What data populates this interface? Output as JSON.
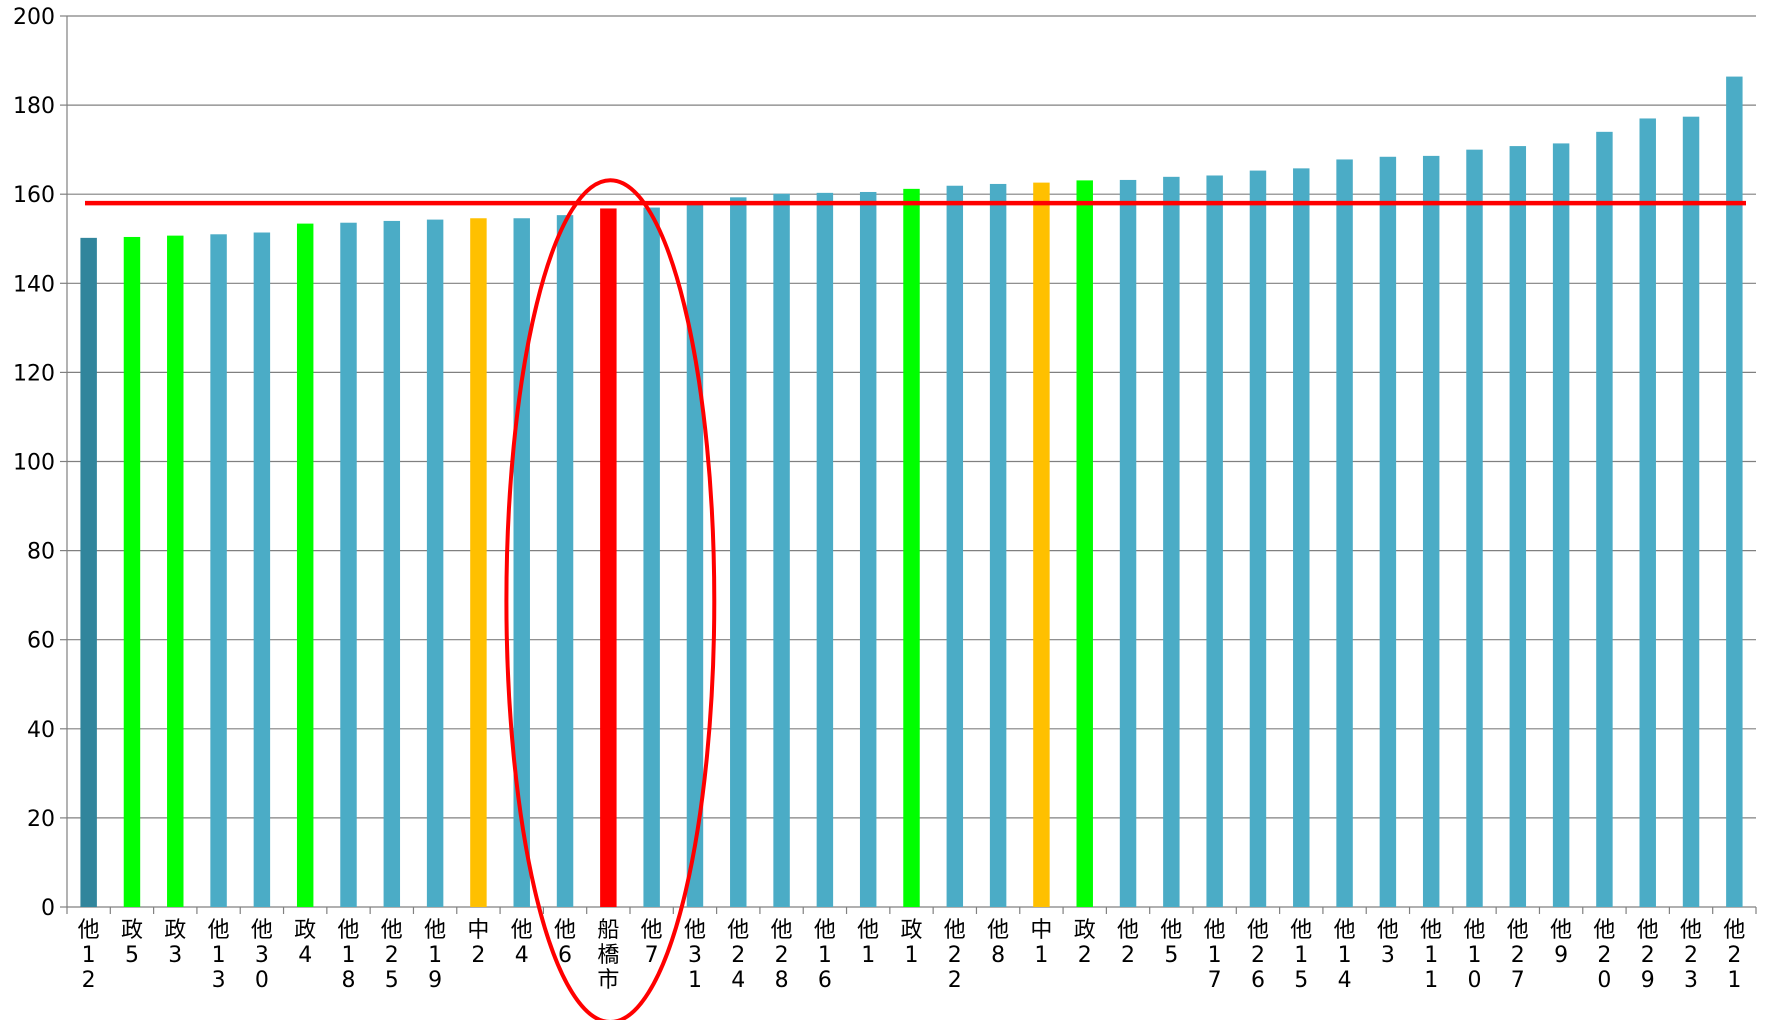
{
  "chart_data": {
    "type": "bar",
    "title": "",
    "xlabel": "",
    "ylabel": "",
    "ylim": [
      0,
      200
    ],
    "y_ticks": [
      0,
      20,
      40,
      60,
      80,
      100,
      120,
      140,
      160,
      180,
      200
    ],
    "grid": "horizontal",
    "legend": "none",
    "categories": [
      "他12",
      "政5",
      "政3",
      "他13",
      "他30",
      "政4",
      "他18",
      "他25",
      "他19",
      "中2",
      "他4",
      "他6",
      "船橋市",
      "他7",
      "他31",
      "他24",
      "他28",
      "他16",
      "他1",
      "政1",
      "他22",
      "他8",
      "中1",
      "政2",
      "他2",
      "他5",
      "他17",
      "他26",
      "他15",
      "他14",
      "他3",
      "他11",
      "他10",
      "他27",
      "他9",
      "他20",
      "他29",
      "他23",
      "他21"
    ],
    "values": [
      150.2,
      150.4,
      150.7,
      151.0,
      151.4,
      153.4,
      153.6,
      154.0,
      154.3,
      154.6,
      154.6,
      155.3,
      156.8,
      157.0,
      157.9,
      159.3,
      160.1,
      160.3,
      160.5,
      161.2,
      161.9,
      162.3,
      162.6,
      163.1,
      163.2,
      163.9,
      164.2,
      165.3,
      165.8,
      167.8,
      168.4,
      168.6,
      170.0,
      170.8,
      171.4,
      174.0,
      177.0,
      177.4,
      186.4
    ],
    "bar_colors": [
      "#31859C",
      "#00FF00",
      "#00FF00",
      "#4BACC6",
      "#4BACC6",
      "#00FF00",
      "#4BACC6",
      "#4BACC6",
      "#4BACC6",
      "#FFC000",
      "#4BACC6",
      "#4BACC6",
      "#FF0000",
      "#4BACC6",
      "#4BACC6",
      "#4BACC6",
      "#4BACC6",
      "#4BACC6",
      "#4BACC6",
      "#00FF00",
      "#4BACC6",
      "#4BACC6",
      "#FFC000",
      "#00FF00",
      "#4BACC6",
      "#4BACC6",
      "#4BACC6",
      "#4BACC6",
      "#4BACC6",
      "#4BACC6",
      "#4BACC6",
      "#4BACC6",
      "#4BACC6",
      "#4BACC6",
      "#4BACC6",
      "#4BACC6",
      "#4BACC6",
      "#4BACC6",
      "#4BACC6"
    ],
    "reference_line": {
      "value": 158.0,
      "color": "#FF0000"
    },
    "highlight_ellipse": {
      "category": "船橋市",
      "color": "#FF0000"
    },
    "colors": {
      "axis": "#808080",
      "grid": "#808080",
      "text": "#000000"
    }
  }
}
